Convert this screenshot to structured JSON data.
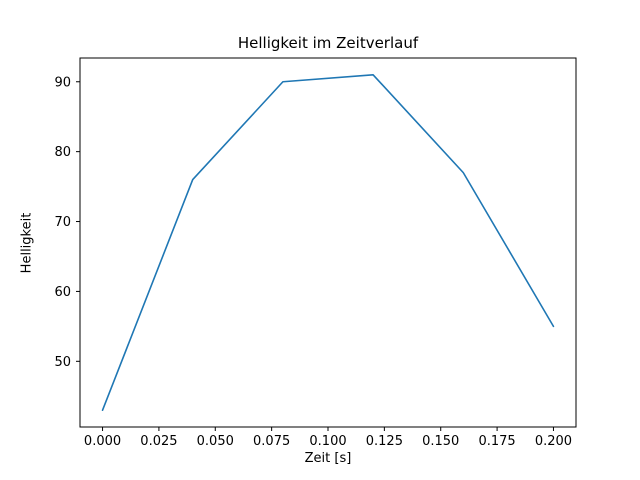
{
  "chart_data": {
    "type": "line",
    "title": "Helligkeit im Zeitverlauf",
    "xlabel": "Zeit [s]",
    "ylabel": "Helligkeit",
    "x": [
      0.0,
      0.04,
      0.08,
      0.12,
      0.16,
      0.2
    ],
    "y": [
      43,
      76,
      90,
      91,
      77,
      55
    ],
    "xlim": [
      -0.01,
      0.21
    ],
    "ylim": [
      40.6,
      93.4
    ],
    "xticks": {
      "values": [
        0.0,
        0.025,
        0.05,
        0.075,
        0.1,
        0.125,
        0.15,
        0.175,
        0.2
      ],
      "labels": [
        "0.000",
        "0.025",
        "0.050",
        "0.075",
        "0.100",
        "0.125",
        "0.150",
        "0.175",
        "0.200"
      ]
    },
    "yticks": {
      "values": [
        50,
        60,
        70,
        80,
        90
      ],
      "labels": [
        "50",
        "60",
        "70",
        "80",
        "90"
      ]
    },
    "line_color": "#1f77b4",
    "axis_color": "#000000",
    "grid": false,
    "legend": null
  }
}
